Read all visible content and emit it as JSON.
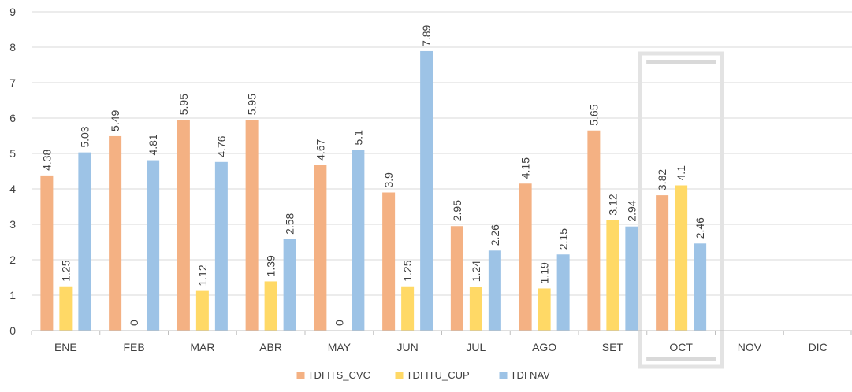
{
  "chart_data": {
    "type": "bar",
    "categories": [
      "ENE",
      "FEB",
      "MAR",
      "ABR",
      "MAY",
      "JUN",
      "JUL",
      "AGO",
      "SET",
      "OCT",
      "NOV",
      "DIC"
    ],
    "series": [
      {
        "name": "TDI ITS_CVC",
        "color": "#f4b183",
        "values": [
          4.38,
          5.49,
          5.95,
          5.95,
          4.67,
          3.9,
          2.95,
          4.15,
          5.65,
          3.82,
          null,
          null
        ],
        "labels": [
          "4.38",
          "5.49",
          "5.95",
          "5.95",
          "4.67",
          "3.9",
          "2.95",
          "4.15",
          "5.65",
          "3.82",
          "",
          ""
        ]
      },
      {
        "name": "TDI ITU_CUP",
        "color": "#ffd966",
        "values": [
          1.25,
          0,
          1.12,
          1.39,
          0,
          1.25,
          1.24,
          1.19,
          3.12,
          4.1,
          null,
          null
        ],
        "labels": [
          "1.25",
          "0",
          "1.12",
          "1.39",
          "0",
          "1.25",
          "1.24",
          "1.19",
          "3.12",
          "4.1",
          "",
          ""
        ]
      },
      {
        "name": "TDI NAV",
        "color": "#9dc3e6",
        "values": [
          5.03,
          4.81,
          4.76,
          2.58,
          5.1,
          7.89,
          2.26,
          2.15,
          2.94,
          2.46,
          null,
          null
        ],
        "labels": [
          "5.03",
          "4.81",
          "4.76",
          "2.58",
          "5.1",
          "7.89",
          "2.26",
          "2.15",
          "2.94",
          "2.46",
          "",
          ""
        ]
      }
    ],
    "title": "",
    "xlabel": "",
    "ylabel": "",
    "ylim": [
      0,
      9
    ],
    "yticks": [
      "0",
      "1",
      "2",
      "3",
      "4",
      "5",
      "6",
      "7",
      "8",
      "9"
    ],
    "grid": true,
    "legend_position": "bottom",
    "highlighted_category": "OCT",
    "highlight_color": "#d9d9d9"
  }
}
